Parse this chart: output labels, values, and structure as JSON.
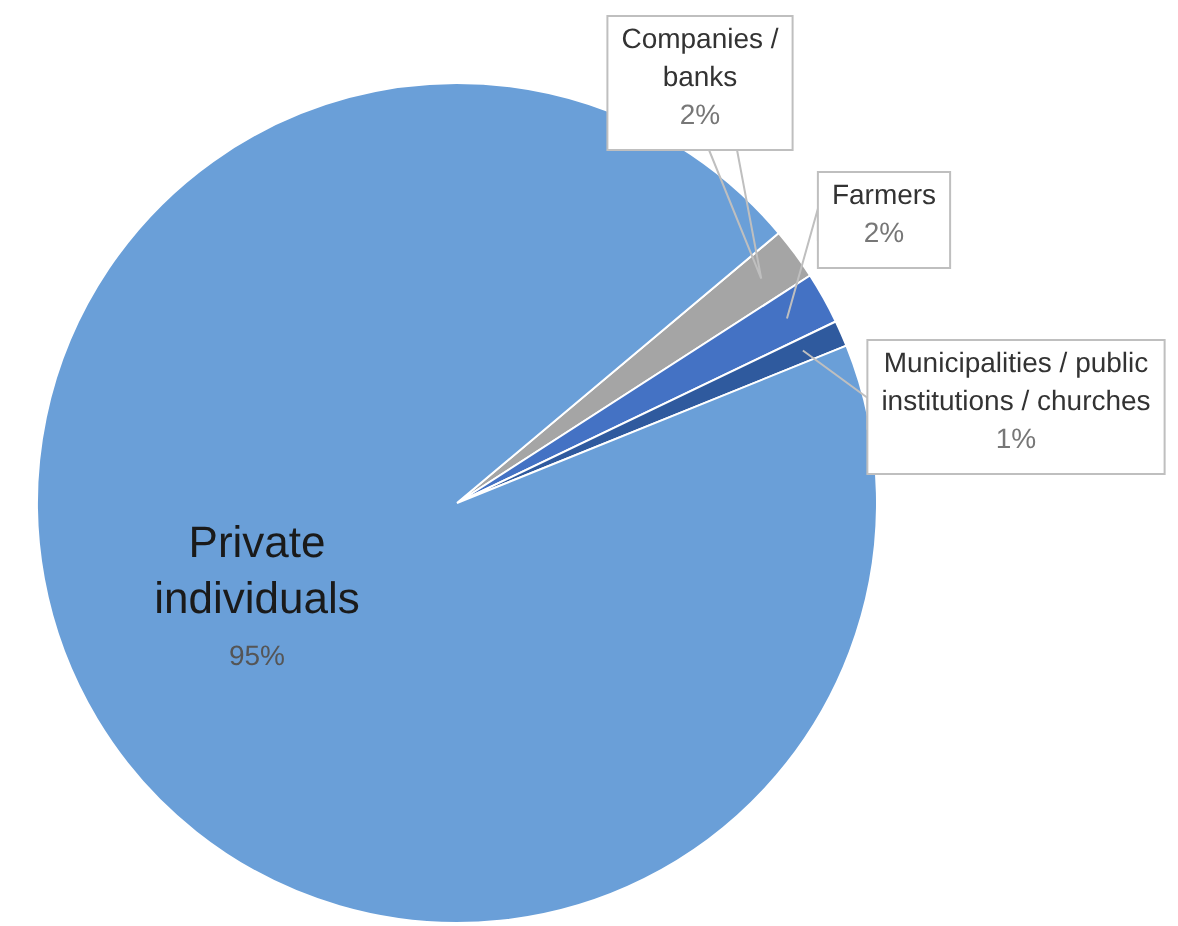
{
  "chart_data": {
    "type": "pie",
    "categories": [
      "Companies / banks",
      "Farmers",
      "Municipalities / public institutions / churches",
      "Private individuals"
    ],
    "values": [
      2,
      2,
      1,
      95
    ],
    "value_labels": [
      "2%",
      "2%",
      "1%",
      "95%"
    ],
    "colors": [
      "#a5a5a5",
      "#4472c4",
      "#2f5a9e",
      "#6a9fd8"
    ],
    "legend": false
  }
}
